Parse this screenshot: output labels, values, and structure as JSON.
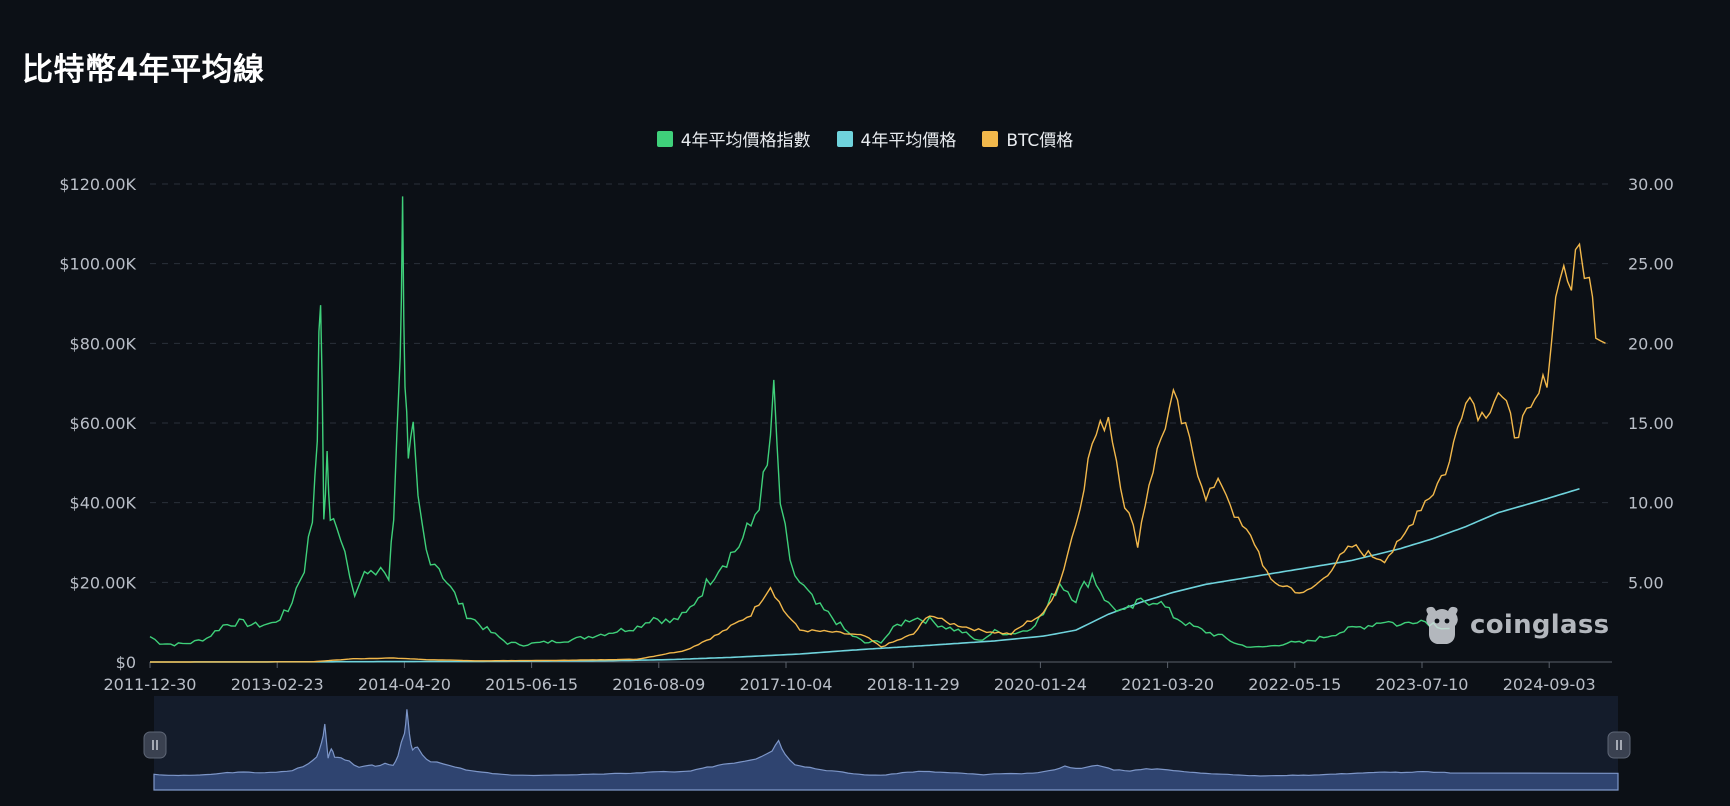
{
  "title": "比特幣4年平均線",
  "legend": [
    {
      "label": "4年平均價格指數",
      "color": "#3fd07a"
    },
    {
      "label": "4年平均價格",
      "color": "#6fd3dc"
    },
    {
      "label": "BTC價格",
      "color": "#f2b84b"
    }
  ],
  "watermark": "coinglass",
  "chart_data": {
    "type": "line",
    "x_ticks": [
      "2011-12-30",
      "2013-02-23",
      "2014-04-20",
      "2015-06-15",
      "2016-08-09",
      "2017-10-04",
      "2018-11-29",
      "2020-01-24",
      "2021-03-20",
      "2022-05-15",
      "2023-07-10",
      "2024-09-03"
    ],
    "y_left": {
      "ticks": [
        "$0",
        "$20.00K",
        "$40.00K",
        "$60.00K",
        "$80.00K",
        "$100.00K",
        "$120.00K"
      ],
      "range": [
        0,
        120000
      ]
    },
    "y_right": {
      "ticks": [
        "5.00",
        "10.00",
        "15.00",
        "20.00",
        "25.00",
        "30.00"
      ],
      "range": [
        0,
        30
      ]
    },
    "grid": true,
    "legend_position": "top-center",
    "series": [
      {
        "name": "4年平均價格指數",
        "axis": "right",
        "points": [
          [
            0,
            1.6
          ],
          [
            0.6,
            1.2
          ],
          [
            1.5,
            1.1
          ],
          [
            2.5,
            1.2
          ],
          [
            3.5,
            1.5
          ],
          [
            4.5,
            2.3
          ],
          [
            5.5,
            2.5
          ],
          [
            6.5,
            2.3
          ],
          [
            7.5,
            2.4
          ],
          [
            8.5,
            3.2
          ],
          [
            9.5,
            6
          ],
          [
            10.0,
            9
          ],
          [
            10.3,
            15
          ],
          [
            10.5,
            23.5
          ],
          [
            10.7,
            9
          ],
          [
            10.9,
            13
          ],
          [
            11.1,
            8.5
          ],
          [
            11.5,
            9
          ],
          [
            12,
            7
          ],
          [
            12.6,
            4.5
          ],
          [
            13.2,
            5.5
          ],
          [
            13.6,
            5.3
          ],
          [
            14.2,
            6
          ],
          [
            14.7,
            5.2
          ],
          [
            15.0,
            9
          ],
          [
            15.4,
            20
          ],
          [
            15.55,
            28
          ],
          [
            15.7,
            18
          ],
          [
            15.9,
            12
          ],
          [
            16.2,
            14
          ],
          [
            16.5,
            10
          ],
          [
            17,
            7
          ],
          [
            17.8,
            6
          ],
          [
            18.5,
            4.6
          ],
          [
            19.5,
            3
          ],
          [
            20.5,
            2.2
          ],
          [
            22,
            1.2
          ],
          [
            23,
            1.1
          ],
          [
            24,
            1.2
          ],
          [
            25,
            1.3
          ],
          [
            26,
            1.4
          ],
          [
            27,
            1.6
          ],
          [
            28,
            1.8
          ],
          [
            29,
            2
          ],
          [
            30,
            2.2
          ],
          [
            31,
            2.8
          ],
          [
            32,
            2.5
          ],
          [
            33,
            3
          ],
          [
            34,
            4.5
          ],
          [
            35,
            6
          ],
          [
            36,
            7
          ],
          [
            37,
            8.5
          ],
          [
            38,
            12
          ],
          [
            38.4,
            16.5
          ],
          [
            38.8,
            10
          ],
          [
            39.4,
            6
          ],
          [
            40,
            5
          ],
          [
            41,
            3.6
          ],
          [
            42,
            2.8
          ],
          [
            43,
            1.8
          ],
          [
            44,
            1.2
          ],
          [
            45,
            1.3
          ],
          [
            46,
            2.3
          ],
          [
            47,
            2.8
          ],
          [
            48,
            2.6
          ],
          [
            49,
            2.2
          ],
          [
            50,
            1.9
          ],
          [
            51,
            1.3
          ],
          [
            52,
            1.9
          ],
          [
            53,
            1.8
          ],
          [
            54,
            2
          ],
          [
            55,
            3
          ],
          [
            56,
            5
          ],
          [
            57,
            4
          ],
          [
            58,
            5.5
          ],
          [
            59,
            3.6
          ],
          [
            60,
            3.1
          ],
          [
            61,
            3.8
          ],
          [
            62,
            3.9
          ],
          [
            63,
            2.9
          ],
          [
            64,
            2.3
          ],
          [
            65,
            1.9
          ],
          [
            66,
            1.6
          ],
          [
            67,
            1.1
          ],
          [
            68,
            0.9
          ],
          [
            69,
            1.0
          ],
          [
            70,
            1.2
          ],
          [
            71,
            1.2
          ],
          [
            72,
            1.5
          ],
          [
            73,
            1.8
          ],
          [
            74,
            2.1
          ],
          [
            75,
            2.3
          ],
          [
            76,
            2.6
          ],
          [
            77,
            2.3
          ],
          [
            78,
            2.7
          ],
          [
            79,
            2.4
          ],
          [
            80,
            2.1
          ]
        ]
      },
      {
        "name": "4年平均價格",
        "axis": "left",
        "points": [
          [
            0,
            0
          ],
          [
            10,
            50
          ],
          [
            20,
            150
          ],
          [
            28,
            300
          ],
          [
            32,
            600
          ],
          [
            36,
            1200
          ],
          [
            40,
            2000
          ],
          [
            44,
            3200
          ],
          [
            48,
            4200
          ],
          [
            52,
            5300
          ],
          [
            55,
            6500
          ],
          [
            57,
            8000
          ],
          [
            58,
            10000
          ],
          [
            59,
            12000
          ],
          [
            61,
            15000
          ],
          [
            63,
            17500
          ],
          [
            65,
            19500
          ],
          [
            68,
            21500
          ],
          [
            71,
            23500
          ],
          [
            74,
            25500
          ],
          [
            77,
            28500
          ],
          [
            79,
            31000
          ],
          [
            81,
            34000
          ],
          [
            83,
            37500
          ],
          [
            86,
            41000
          ],
          [
            88,
            43500
          ]
        ]
      },
      {
        "name": "BTC價格",
        "axis": "left",
        "points": [
          [
            0,
            0
          ],
          [
            10,
            50
          ],
          [
            12.5,
            800
          ],
          [
            15,
            1000
          ],
          [
            17,
            600
          ],
          [
            20,
            300
          ],
          [
            25,
            400
          ],
          [
            30,
            700
          ],
          [
            33,
            3000
          ],
          [
            35,
            7000
          ],
          [
            37,
            12000
          ],
          [
            38.2,
            19000
          ],
          [
            39,
            13000
          ],
          [
            40,
            8000
          ],
          [
            42,
            7500
          ],
          [
            44,
            6500
          ],
          [
            45,
            3800
          ],
          [
            47,
            7000
          ],
          [
            48,
            12000
          ],
          [
            49,
            10000
          ],
          [
            50,
            9000
          ],
          [
            51,
            8000
          ],
          [
            52,
            7500
          ],
          [
            53,
            7000
          ],
          [
            54,
            10000
          ],
          [
            55,
            12000
          ],
          [
            56,
            20000
          ],
          [
            57,
            35000
          ],
          [
            58,
            55000
          ],
          [
            59,
            62000
          ],
          [
            60,
            40000
          ],
          [
            60.8,
            30000
          ],
          [
            61.5,
            45000
          ],
          [
            62.5,
            60000
          ],
          [
            63,
            66000
          ],
          [
            64,
            55000
          ],
          [
            65,
            42000
          ],
          [
            66,
            45000
          ],
          [
            67,
            35000
          ],
          [
            68,
            30000
          ],
          [
            69,
            20000
          ],
          [
            70,
            19000
          ],
          [
            71,
            17000
          ],
          [
            72,
            20000
          ],
          [
            73,
            25000
          ],
          [
            74,
            29000
          ],
          [
            75,
            27000
          ],
          [
            76,
            26000
          ],
          [
            77,
            30000
          ],
          [
            78,
            38000
          ],
          [
            79,
            43000
          ],
          [
            80,
            50000
          ],
          [
            81,
            68000
          ],
          [
            82,
            62000
          ],
          [
            83,
            68000
          ],
          [
            84,
            58000
          ],
          [
            85,
            62000
          ],
          [
            86,
            72000
          ],
          [
            86.8,
            100000
          ],
          [
            87.5,
            95000
          ],
          [
            88,
            104000
          ],
          [
            88.6,
            95000
          ],
          [
            89,
            85000
          ],
          [
            89.6,
            80000
          ]
        ]
      }
    ]
  },
  "navigator": {
    "series": "4年平均價格指數"
  }
}
